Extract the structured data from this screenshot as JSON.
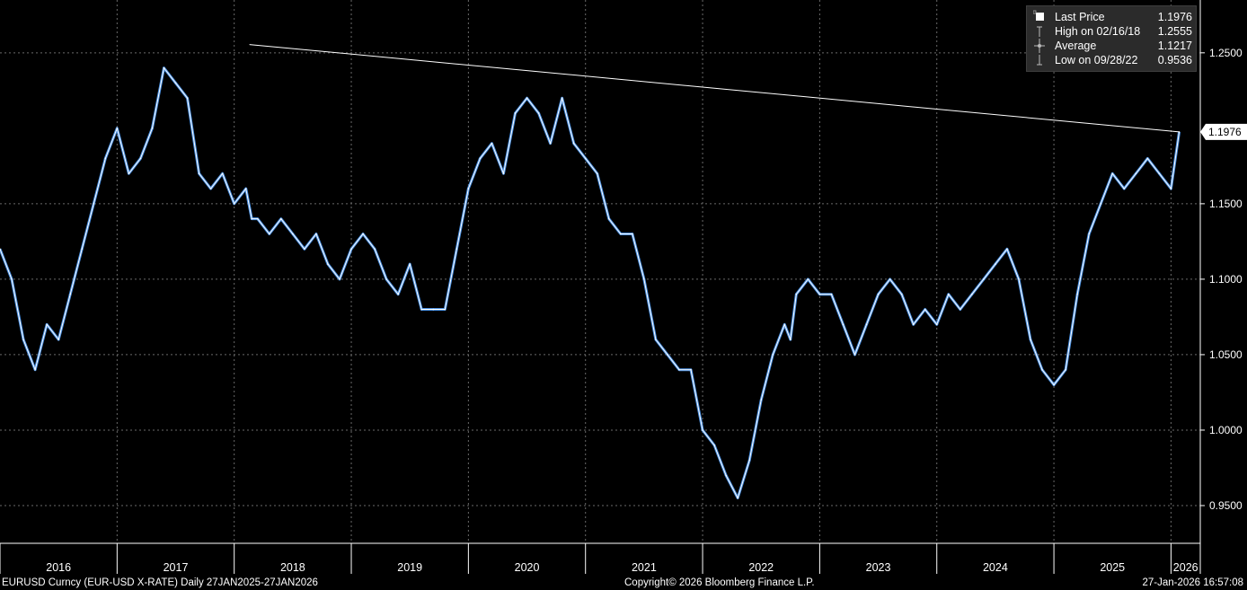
{
  "chart_data": {
    "type": "line",
    "title": "",
    "xlabel": "",
    "ylabel": "",
    "series": [
      {
        "name": "Last Price",
        "values_description": "EURUSD daily close",
        "x": [
          2016.0,
          2016.1,
          2016.2,
          2016.3,
          2016.4,
          2016.5,
          2016.6,
          2016.7,
          2016.8,
          2016.9,
          2017.0,
          2017.1,
          2017.2,
          2017.3,
          2017.4,
          2017.5,
          2017.6,
          2017.7,
          2017.8,
          2017.9,
          2018.0,
          2018.1,
          2018.15,
          2018.2,
          2018.3,
          2018.4,
          2018.5,
          2018.6,
          2018.7,
          2018.8,
          2018.9,
          2019.0,
          2019.1,
          2019.2,
          2019.3,
          2019.4,
          2019.5,
          2019.6,
          2019.7,
          2019.8,
          2019.9,
          2020.0,
          2020.1,
          2020.2,
          2020.3,
          2020.4,
          2020.5,
          2020.6,
          2020.7,
          2020.8,
          2020.9,
          2021.0,
          2021.1,
          2021.2,
          2021.3,
          2021.4,
          2021.5,
          2021.6,
          2021.7,
          2021.8,
          2021.9,
          2022.0,
          2022.1,
          2022.2,
          2022.3,
          2022.4,
          2022.5,
          2022.6,
          2022.7,
          2022.75,
          2022.8,
          2022.9,
          2023.0,
          2023.1,
          2023.2,
          2023.3,
          2023.4,
          2023.5,
          2023.6,
          2023.7,
          2023.8,
          2023.9,
          2024.0,
          2024.1,
          2024.2,
          2024.3,
          2024.4,
          2024.5,
          2024.6,
          2024.7,
          2024.8,
          2024.9,
          2025.0,
          2025.1,
          2025.2,
          2025.3,
          2025.4,
          2025.5,
          2025.6,
          2025.7,
          2025.8,
          2025.9,
          2026.0,
          2026.07
        ],
        "y": [
          1.12,
          1.1,
          1.06,
          1.04,
          1.07,
          1.06,
          1.09,
          1.12,
          1.15,
          1.18,
          1.2,
          1.17,
          1.18,
          1.2,
          1.24,
          1.23,
          1.22,
          1.17,
          1.16,
          1.17,
          1.15,
          1.16,
          1.14,
          1.14,
          1.13,
          1.14,
          1.13,
          1.12,
          1.13,
          1.11,
          1.1,
          1.12,
          1.13,
          1.12,
          1.1,
          1.09,
          1.11,
          1.08,
          1.08,
          1.08,
          1.12,
          1.16,
          1.18,
          1.19,
          1.17,
          1.21,
          1.22,
          1.21,
          1.19,
          1.22,
          1.19,
          1.18,
          1.17,
          1.14,
          1.13,
          1.13,
          1.1,
          1.06,
          1.05,
          1.04,
          1.04,
          1.0,
          0.99,
          0.97,
          0.955,
          0.98,
          1.02,
          1.05,
          1.07,
          1.06,
          1.09,
          1.1,
          1.09,
          1.09,
          1.07,
          1.05,
          1.07,
          1.09,
          1.1,
          1.09,
          1.07,
          1.08,
          1.07,
          1.09,
          1.08,
          1.09,
          1.1,
          1.11,
          1.12,
          1.1,
          1.06,
          1.04,
          1.03,
          1.04,
          1.09,
          1.13,
          1.15,
          1.17,
          1.16,
          1.17,
          1.18,
          1.17,
          1.16,
          1.1976
        ]
      }
    ],
    "trendline": {
      "from": {
        "x": 2018.13,
        "y": 1.2555
      },
      "to": {
        "x": 2026.07,
        "y": 1.1976
      }
    },
    "ylim": [
      0.925,
      1.285
    ],
    "xlim": [
      2016.0,
      2026.25
    ],
    "y_ticks": [
      {
        "value": 1.25,
        "label": "1.2500"
      },
      {
        "value": 1.15,
        "label": "1.1500"
      },
      {
        "value": 1.1,
        "label": "1.1000"
      },
      {
        "value": 1.05,
        "label": "1.0500"
      },
      {
        "value": 1.0,
        "label": "1.0000"
      },
      {
        "value": 0.95,
        "label": "0.9500"
      }
    ],
    "last_price_tag": {
      "value": 1.1976,
      "label": "1.1976"
    },
    "x_ticks": [
      {
        "value": 2016.0,
        "label": "2016"
      },
      {
        "value": 2017.0,
        "label": "2017"
      },
      {
        "value": 2018.0,
        "label": "2018"
      },
      {
        "value": 2019.0,
        "label": "2019"
      },
      {
        "value": 2020.0,
        "label": "2020"
      },
      {
        "value": 2021.0,
        "label": "2021"
      },
      {
        "value": 2022.0,
        "label": "2022"
      },
      {
        "value": 2023.0,
        "label": "2023"
      },
      {
        "value": 2024.0,
        "label": "2024"
      },
      {
        "value": 2025.0,
        "label": "2025"
      },
      {
        "value": 2026.0,
        "label": "2026"
      }
    ],
    "grid": true,
    "legend_position": "top-right",
    "colors": {
      "price_line": "#4a90e2",
      "price_highlight": "#ffffff",
      "trendline": "#ffffff",
      "grid": "#6a6a6a",
      "background": "#000000"
    }
  },
  "legend": {
    "items": [
      {
        "icon": "filled-square-icon",
        "label": "Last Price",
        "value": "1.1976"
      },
      {
        "icon": "high-marker-icon",
        "label": "High on 02/16/18",
        "value": "1.2555"
      },
      {
        "icon": "average-marker-icon",
        "label": "Average",
        "value": "1.1217"
      },
      {
        "icon": "low-marker-icon",
        "label": "Low on 09/28/22",
        "value": "0.9536"
      }
    ]
  },
  "footer": {
    "security": "EURUSD Curncy (EUR-USD X-RATE) Daily 27JAN2025-27JAN2026",
    "copyright": "Copyright© 2026 Bloomberg Finance L.P.",
    "timestamp": "27-Jan-2026 16:57:08"
  }
}
